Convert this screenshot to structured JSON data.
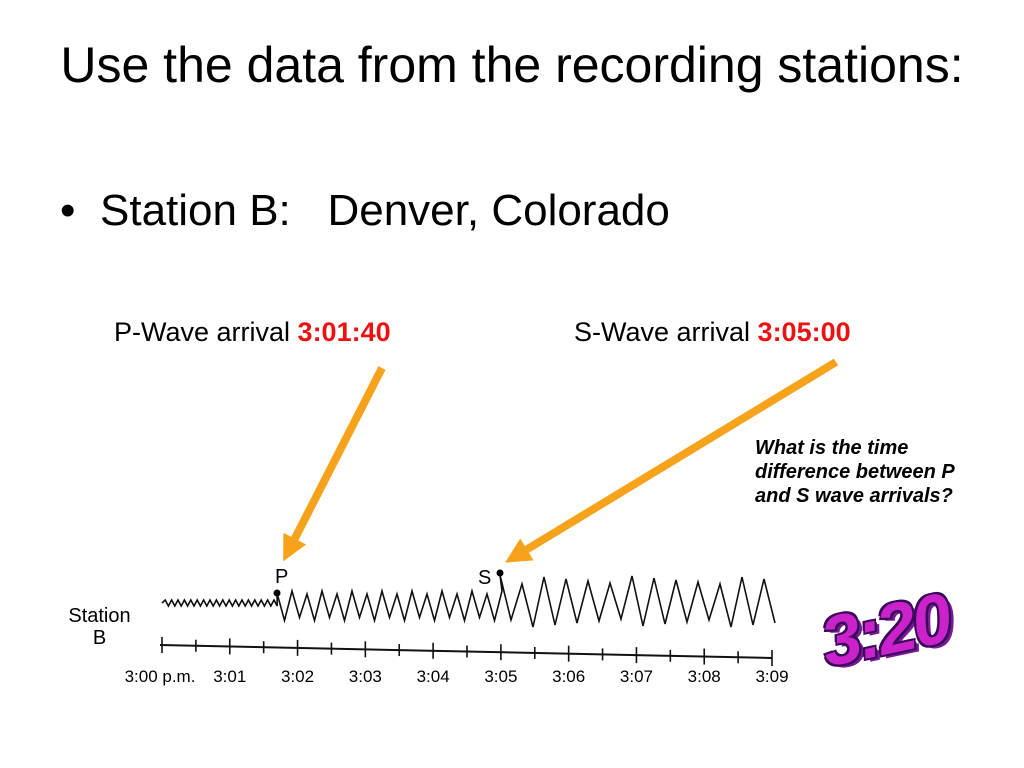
{
  "slide": {
    "title": "Use the data from the recording stations:",
    "bullet_marker": "•",
    "bullet_text": "Station B:   Denver, Colorado"
  },
  "p_wave": {
    "label": "P-Wave arrival",
    "time": "3:01:40"
  },
  "s_wave": {
    "label": "S-Wave arrival",
    "time": "3:05:00"
  },
  "question": "What is the time difference between P and S wave arrivals?",
  "answer": "3:20",
  "seismogram": {
    "station_label_line1": "Station",
    "station_label_line2": "B",
    "marker_p": "P",
    "marker_s": "S",
    "ticks": [
      "3:00 p.m.",
      "3:01",
      "3:02",
      "3:03",
      "3:04",
      "3:05",
      "3:06",
      "3:07",
      "3:08",
      "3:09"
    ]
  },
  "colors": {
    "arrow": "#f7a21b",
    "time_highlight": "#ee1111",
    "answer": "#cc22cc"
  }
}
